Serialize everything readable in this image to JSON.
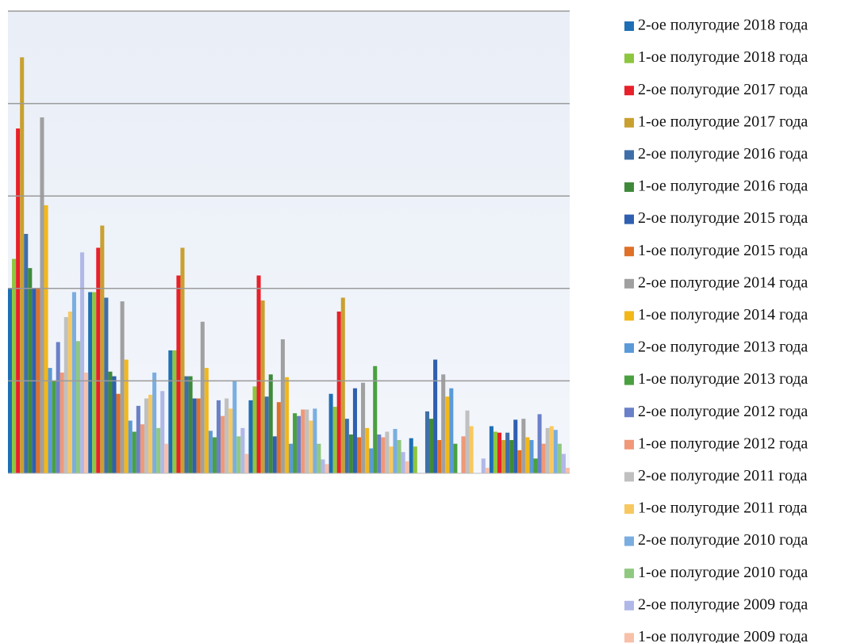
{
  "chart_data": {
    "type": "bar",
    "categories": [
      null,
      null,
      null,
      null,
      null,
      null,
      null
    ],
    "ylim": [
      0,
      5
    ],
    "yticks": [
      1,
      2,
      3,
      4,
      5
    ],
    "grid": true,
    "series": [
      {
        "name": "2-ое полугодие 2018 года",
        "color": "#1f6fb5",
        "values": [
          2.0,
          1.96,
          1.33,
          0.79,
          0.86,
          0.38,
          0.51
        ]
      },
      {
        "name": "1-ое полугодие 2018 года",
        "color": "#8dc63f",
        "values": [
          2.32,
          1.96,
          1.33,
          0.94,
          0.72,
          0.29,
          0.45
        ]
      },
      {
        "name": "2-ое полугодие 2017 года",
        "color": "#e8202a",
        "values": [
          3.73,
          2.44,
          2.14,
          2.14,
          1.75,
          0,
          0.44
        ]
      },
      {
        "name": "1-ое полугодие 2017 года",
        "color": "#c9a030",
        "values": [
          4.5,
          2.68,
          2.44,
          1.87,
          1.9,
          0,
          0.36
        ]
      },
      {
        "name": "2-ое полугодие 2016 года",
        "color": "#3f6fa8",
        "values": [
          2.59,
          1.9,
          1.05,
          0.83,
          0.59,
          0.67,
          0.44
        ]
      },
      {
        "name": "1-ое полугодие 2016 года",
        "color": "#3f8a3a",
        "values": [
          2.22,
          1.1,
          1.05,
          1.07,
          0.42,
          0.59,
          0.36
        ]
      },
      {
        "name": "2-ое полугодие 2015 года",
        "color": "#2f5fb0",
        "values": [
          2.0,
          1.05,
          0.81,
          0.4,
          0.92,
          1.23,
          0.58
        ]
      },
      {
        "name": "1-ое полугодие 2015 года",
        "color": "#e07028",
        "values": [
          2.0,
          0.86,
          0.81,
          0.77,
          0.39,
          0.36,
          0.25
        ]
      },
      {
        "name": "2-ое полугодие 2014 года",
        "color": "#a0a0a0",
        "values": [
          3.85,
          1.86,
          1.64,
          1.45,
          0.98,
          1.07,
          0.59
        ]
      },
      {
        "name": "1-ое полугодие 2014 года",
        "color": "#f2b81a",
        "values": [
          2.9,
          1.23,
          1.14,
          1.04,
          0.49,
          0.83,
          0.39
        ]
      },
      {
        "name": "2-ое полугодие 2013 года",
        "color": "#5a9ad8",
        "values": [
          1.14,
          0.57,
          0.46,
          0.32,
          0.27,
          0.92,
          0.36
        ]
      },
      {
        "name": "1-ое полугодие 2013 года",
        "color": "#4aa040",
        "values": [
          1.0,
          0.45,
          0.39,
          0.65,
          1.16,
          0.32,
          0.16
        ]
      },
      {
        "name": "2-ое полугодие 2012 года",
        "color": "#6a80c8",
        "values": [
          1.42,
          0.73,
          0.79,
          0.62,
          0.42,
          0,
          0.64
        ]
      },
      {
        "name": "1-ое полугодие 2012 года",
        "color": "#f09878",
        "values": [
          1.09,
          0.53,
          0.62,
          0.69,
          0.39,
          0.4,
          0.32
        ]
      },
      {
        "name": "2-ое полугодие 2011 года",
        "color": "#c0c0c0",
        "values": [
          1.69,
          0.81,
          0.81,
          0.69,
          0.45,
          0.68,
          0.49
        ]
      },
      {
        "name": "1-ое полугодие 2011 года",
        "color": "#f8c860",
        "values": [
          1.75,
          0.85,
          0.7,
          0.57,
          0.29,
          0.51,
          0.51
        ]
      },
      {
        "name": "2-ое полугодие 2010 года",
        "color": "#7aaee0",
        "values": [
          1.96,
          1.09,
          1.0,
          0.7,
          0.48,
          0,
          0.47
        ]
      },
      {
        "name": "1-ое полугодие 2010 года",
        "color": "#90c880",
        "values": [
          1.43,
          0.49,
          0.4,
          0.32,
          0.36,
          0,
          0.32
        ]
      },
      {
        "name": "2-ое полугодие 2009 года",
        "color": "#b0b8e8",
        "values": [
          2.39,
          0.89,
          0.49,
          0.15,
          0.23,
          0.16,
          0.21
        ]
      },
      {
        "name": "1-ое полугодие 2009 года",
        "color": "#f8c0a8",
        "values": [
          1.09,
          0.32,
          0.21,
          0.1,
          0.13,
          0.06,
          0.06
        ]
      }
    ]
  }
}
